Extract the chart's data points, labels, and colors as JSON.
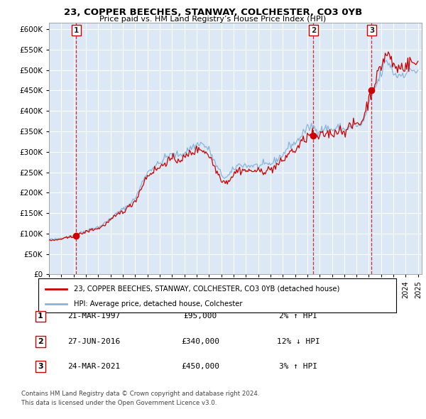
{
  "title": "23, COPPER BEECHES, STANWAY, COLCHESTER, CO3 0YB",
  "subtitle": "Price paid vs. HM Land Registry’s House Price Index (HPI)",
  "ylabel_ticks": [
    "£0",
    "£50K",
    "£100K",
    "£150K",
    "£200K",
    "£250K",
    "£300K",
    "£350K",
    "£400K",
    "£450K",
    "£500K",
    "£550K",
    "£600K"
  ],
  "ytick_values": [
    0,
    50000,
    100000,
    150000,
    200000,
    250000,
    300000,
    350000,
    400000,
    450000,
    500000,
    550000,
    600000
  ],
  "ylim": [
    0,
    615000
  ],
  "xlim_start": 1995.0,
  "xlim_end": 2025.3,
  "background_color": "#ffffff",
  "plot_bg_color": "#dce8f5",
  "grid_color": "#ffffff",
  "sale_color": "#cc0000",
  "hpi_color": "#89b4d9",
  "sale_label": "23, COPPER BEECHES, STANWAY, COLCHESTER, CO3 0YB (detached house)",
  "hpi_label": "HPI: Average price, detached house, Colchester",
  "sales": [
    {
      "num": 1,
      "date": "21-MAR-1997",
      "price": 95000,
      "year": 1997.22,
      "pct": "2%",
      "dir": "↑"
    },
    {
      "num": 2,
      "date": "27-JUN-2016",
      "price": 340000,
      "year": 2016.49,
      "pct": "12%",
      "dir": "↓"
    },
    {
      "num": 3,
      "date": "24-MAR-2021",
      "price": 450000,
      "year": 2021.23,
      "pct": "3%",
      "dir": "↑"
    }
  ],
  "footer1": "Contains HM Land Registry data © Crown copyright and database right 2024.",
  "footer2": "This data is licensed under the Open Government Licence v3.0.",
  "hpi_base_data": [
    [
      1995.0,
      87000
    ],
    [
      1995.08,
      86500
    ],
    [
      1995.17,
      86000
    ],
    [
      1995.25,
      85500
    ],
    [
      1995.33,
      85000
    ],
    [
      1995.42,
      85500
    ],
    [
      1995.5,
      86000
    ],
    [
      1995.58,
      86500
    ],
    [
      1995.67,
      87000
    ],
    [
      1995.75,
      87500
    ],
    [
      1995.83,
      88000
    ],
    [
      1995.92,
      88500
    ],
    [
      1996.0,
      89000
    ],
    [
      1996.08,
      89500
    ],
    [
      1996.17,
      90000
    ],
    [
      1996.25,
      90500
    ],
    [
      1996.33,
      91000
    ],
    [
      1996.42,
      91500
    ],
    [
      1996.5,
      92000
    ],
    [
      1996.58,
      92500
    ],
    [
      1996.67,
      93000
    ],
    [
      1996.75,
      93500
    ],
    [
      1996.83,
      94000
    ],
    [
      1996.92,
      94500
    ],
    [
      1997.0,
      95000
    ],
    [
      1997.08,
      96000
    ],
    [
      1997.17,
      97000
    ],
    [
      1997.25,
      98000
    ],
    [
      1997.33,
      99000
    ],
    [
      1997.42,
      100000
    ],
    [
      1997.5,
      101000
    ],
    [
      1997.58,
      102000
    ],
    [
      1997.67,
      103000
    ],
    [
      1997.75,
      104000
    ],
    [
      1997.83,
      105000
    ],
    [
      1997.92,
      106000
    ],
    [
      1998.0,
      107000
    ],
    [
      1998.08,
      108000
    ],
    [
      1998.17,
      109000
    ],
    [
      1998.25,
      110000
    ],
    [
      1998.33,
      111000
    ],
    [
      1998.42,
      112000
    ],
    [
      1998.5,
      113000
    ],
    [
      1998.58,
      113500
    ],
    [
      1998.67,
      114000
    ],
    [
      1998.75,
      114500
    ],
    [
      1998.83,
      115000
    ],
    [
      1998.92,
      115500
    ],
    [
      1999.0,
      116000
    ],
    [
      1999.08,
      117000
    ],
    [
      1999.17,
      118500
    ],
    [
      1999.25,
      120000
    ],
    [
      1999.33,
      121500
    ],
    [
      1999.42,
      123000
    ],
    [
      1999.5,
      125000
    ],
    [
      1999.58,
      127000
    ],
    [
      1999.67,
      129000
    ],
    [
      1999.75,
      131000
    ],
    [
      1999.83,
      133000
    ],
    [
      1999.92,
      135000
    ],
    [
      2000.0,
      137000
    ],
    [
      2000.08,
      139000
    ],
    [
      2000.17,
      141000
    ],
    [
      2000.25,
      143000
    ],
    [
      2000.33,
      145000
    ],
    [
      2000.42,
      147000
    ],
    [
      2000.5,
      149000
    ],
    [
      2000.58,
      151000
    ],
    [
      2000.67,
      153000
    ],
    [
      2000.75,
      155000
    ],
    [
      2000.83,
      157000
    ],
    [
      2000.92,
      158000
    ],
    [
      2001.0,
      159000
    ],
    [
      2001.08,
      161000
    ],
    [
      2001.17,
      163000
    ],
    [
      2001.25,
      165000
    ],
    [
      2001.33,
      167000
    ],
    [
      2001.42,
      169000
    ],
    [
      2001.5,
      171000
    ],
    [
      2001.58,
      173000
    ],
    [
      2001.67,
      175500
    ],
    [
      2001.75,
      178000
    ],
    [
      2001.83,
      181000
    ],
    [
      2001.92,
      184000
    ],
    [
      2002.0,
      187000
    ],
    [
      2002.08,
      191000
    ],
    [
      2002.17,
      196000
    ],
    [
      2002.25,
      201000
    ],
    [
      2002.33,
      207000
    ],
    [
      2002.42,
      213000
    ],
    [
      2002.5,
      219000
    ],
    [
      2002.58,
      225000
    ],
    [
      2002.67,
      231000
    ],
    [
      2002.75,
      237000
    ],
    [
      2002.83,
      242000
    ],
    [
      2002.92,
      246000
    ],
    [
      2003.0,
      249000
    ],
    [
      2003.08,
      252000
    ],
    [
      2003.17,
      255000
    ],
    [
      2003.25,
      257000
    ],
    [
      2003.33,
      259000
    ],
    [
      2003.42,
      261000
    ],
    [
      2003.5,
      263000
    ],
    [
      2003.58,
      265000
    ],
    [
      2003.67,
      267000
    ],
    [
      2003.75,
      268000
    ],
    [
      2003.83,
      269000
    ],
    [
      2003.92,
      270000
    ],
    [
      2004.0,
      271000
    ],
    [
      2004.08,
      273000
    ],
    [
      2004.17,
      276000
    ],
    [
      2004.25,
      279000
    ],
    [
      2004.33,
      282000
    ],
    [
      2004.42,
      285000
    ],
    [
      2004.5,
      287000
    ],
    [
      2004.58,
      288000
    ],
    [
      2004.67,
      289000
    ],
    [
      2004.75,
      290000
    ],
    [
      2004.83,
      291000
    ],
    [
      2004.92,
      292000
    ],
    [
      2005.0,
      292000
    ],
    [
      2005.08,
      291500
    ],
    [
      2005.17,
      291000
    ],
    [
      2005.25,
      291500
    ],
    [
      2005.33,
      292000
    ],
    [
      2005.42,
      292500
    ],
    [
      2005.5,
      293000
    ],
    [
      2005.58,
      293500
    ],
    [
      2005.67,
      294000
    ],
    [
      2005.75,
      294500
    ],
    [
      2005.83,
      295000
    ],
    [
      2005.92,
      295500
    ],
    [
      2006.0,
      296000
    ],
    [
      2006.08,
      298000
    ],
    [
      2006.17,
      300000
    ],
    [
      2006.25,
      303000
    ],
    [
      2006.33,
      306000
    ],
    [
      2006.42,
      308000
    ],
    [
      2006.5,
      310000
    ],
    [
      2006.58,
      311000
    ],
    [
      2006.67,
      312000
    ],
    [
      2006.75,
      313000
    ],
    [
      2006.83,
      314000
    ],
    [
      2006.92,
      315000
    ],
    [
      2007.0,
      317000
    ],
    [
      2007.08,
      319000
    ],
    [
      2007.17,
      321000
    ],
    [
      2007.25,
      322000
    ],
    [
      2007.33,
      321000
    ],
    [
      2007.42,
      320000
    ],
    [
      2007.5,
      318000
    ],
    [
      2007.58,
      316000
    ],
    [
      2007.67,
      314000
    ],
    [
      2007.75,
      312000
    ],
    [
      2007.83,
      310000
    ],
    [
      2007.92,
      308000
    ],
    [
      2008.0,
      305000
    ],
    [
      2008.08,
      301000
    ],
    [
      2008.17,
      296000
    ],
    [
      2008.25,
      290000
    ],
    [
      2008.33,
      284000
    ],
    [
      2008.42,
      278000
    ],
    [
      2008.5,
      272000
    ],
    [
      2008.58,
      267000
    ],
    [
      2008.67,
      262000
    ],
    [
      2008.75,
      258000
    ],
    [
      2008.83,
      254000
    ],
    [
      2008.92,
      250000
    ],
    [
      2009.0,
      246000
    ],
    [
      2009.08,
      243000
    ],
    [
      2009.17,
      240000
    ],
    [
      2009.25,
      238000
    ],
    [
      2009.33,
      237000
    ],
    [
      2009.42,
      237500
    ],
    [
      2009.5,
      239000
    ],
    [
      2009.58,
      241000
    ],
    [
      2009.67,
      244000
    ],
    [
      2009.75,
      247000
    ],
    [
      2009.83,
      250000
    ],
    [
      2009.92,
      253000
    ],
    [
      2010.0,
      256000
    ],
    [
      2010.08,
      259000
    ],
    [
      2010.17,
      262000
    ],
    [
      2010.25,
      265000
    ],
    [
      2010.33,
      267000
    ],
    [
      2010.42,
      268000
    ],
    [
      2010.5,
      268000
    ],
    [
      2010.58,
      268000
    ],
    [
      2010.67,
      268000
    ],
    [
      2010.75,
      268000
    ],
    [
      2010.83,
      268000
    ],
    [
      2010.92,
      268000
    ],
    [
      2011.0,
      267000
    ],
    [
      2011.08,
      266000
    ],
    [
      2011.17,
      265000
    ],
    [
      2011.25,
      265000
    ],
    [
      2011.33,
      265500
    ],
    [
      2011.42,
      266000
    ],
    [
      2011.5,
      266500
    ],
    [
      2011.58,
      267000
    ],
    [
      2011.67,
      267000
    ],
    [
      2011.75,
      266500
    ],
    [
      2011.83,
      266000
    ],
    [
      2011.92,
      265500
    ],
    [
      2012.0,
      265000
    ],
    [
      2012.08,
      265000
    ],
    [
      2012.17,
      265500
    ],
    [
      2012.25,
      266000
    ],
    [
      2012.33,
      266500
    ],
    [
      2012.42,
      267000
    ],
    [
      2012.5,
      267500
    ],
    [
      2012.58,
      268000
    ],
    [
      2012.67,
      268500
    ],
    [
      2012.75,
      269000
    ],
    [
      2012.83,
      269500
    ],
    [
      2012.92,
      270000
    ],
    [
      2013.0,
      270500
    ],
    [
      2013.08,
      271500
    ],
    [
      2013.17,
      273000
    ],
    [
      2013.25,
      275000
    ],
    [
      2013.33,
      277000
    ],
    [
      2013.42,
      279000
    ],
    [
      2013.5,
      281000
    ],
    [
      2013.58,
      283000
    ],
    [
      2013.67,
      285000
    ],
    [
      2013.75,
      287000
    ],
    [
      2013.83,
      289000
    ],
    [
      2013.92,
      291000
    ],
    [
      2014.0,
      293000
    ],
    [
      2014.08,
      296000
    ],
    [
      2014.17,
      299000
    ],
    [
      2014.25,
      303000
    ],
    [
      2014.33,
      307000
    ],
    [
      2014.42,
      311000
    ],
    [
      2014.5,
      314000
    ],
    [
      2014.58,
      316000
    ],
    [
      2014.67,
      317000
    ],
    [
      2014.75,
      318000
    ],
    [
      2014.83,
      319000
    ],
    [
      2014.92,
      320000
    ],
    [
      2015.0,
      321000
    ],
    [
      2015.08,
      323000
    ],
    [
      2015.17,
      326000
    ],
    [
      2015.25,
      329000
    ],
    [
      2015.33,
      333000
    ],
    [
      2015.42,
      337000
    ],
    [
      2015.5,
      340000
    ],
    [
      2015.58,
      343000
    ],
    [
      2015.67,
      346000
    ],
    [
      2015.75,
      349000
    ],
    [
      2015.83,
      352000
    ],
    [
      2015.92,
      354000
    ],
    [
      2016.0,
      356000
    ],
    [
      2016.08,
      358000
    ],
    [
      2016.17,
      360000
    ],
    [
      2016.25,
      362000
    ],
    [
      2016.33,
      363000
    ],
    [
      2016.42,
      362000
    ],
    [
      2016.5,
      360000
    ],
    [
      2016.58,
      358000
    ],
    [
      2016.67,
      356000
    ],
    [
      2016.75,
      355000
    ],
    [
      2016.83,
      354000
    ],
    [
      2016.92,
      353000
    ],
    [
      2017.0,
      352000
    ],
    [
      2017.08,
      353000
    ],
    [
      2017.17,
      354000
    ],
    [
      2017.25,
      355000
    ],
    [
      2017.33,
      356000
    ],
    [
      2017.42,
      357000
    ],
    [
      2017.5,
      358000
    ],
    [
      2017.58,
      358000
    ],
    [
      2017.67,
      357000
    ],
    [
      2017.75,
      356000
    ],
    [
      2017.83,
      355000
    ],
    [
      2017.92,
      354000
    ],
    [
      2018.0,
      353000
    ],
    [
      2018.08,
      354000
    ],
    [
      2018.17,
      355000
    ],
    [
      2018.25,
      356000
    ],
    [
      2018.33,
      357000
    ],
    [
      2018.42,
      358000
    ],
    [
      2018.5,
      359000
    ],
    [
      2018.58,
      359000
    ],
    [
      2018.67,
      358000
    ],
    [
      2018.75,
      357000
    ],
    [
      2018.83,
      356000
    ],
    [
      2018.92,
      355000
    ],
    [
      2019.0,
      354000
    ],
    [
      2019.08,
      355000
    ],
    [
      2019.17,
      356000
    ],
    [
      2019.25,
      357000
    ],
    [
      2019.33,
      358000
    ],
    [
      2019.42,
      359000
    ],
    [
      2019.5,
      360000
    ],
    [
      2019.58,
      361000
    ],
    [
      2019.67,
      362000
    ],
    [
      2019.75,
      363000
    ],
    [
      2019.83,
      364000
    ],
    [
      2019.92,
      365000
    ],
    [
      2020.0,
      366000
    ],
    [
      2020.08,
      365000
    ],
    [
      2020.17,
      364000
    ],
    [
      2020.25,
      363000
    ],
    [
      2020.33,
      364000
    ],
    [
      2020.42,
      367000
    ],
    [
      2020.5,
      372000
    ],
    [
      2020.58,
      378000
    ],
    [
      2020.67,
      385000
    ],
    [
      2020.75,
      392000
    ],
    [
      2020.83,
      400000
    ],
    [
      2020.92,
      408000
    ],
    [
      2021.0,
      415000
    ],
    [
      2021.08,
      422000
    ],
    [
      2021.17,
      429000
    ],
    [
      2021.25,
      436000
    ],
    [
      2021.33,
      443000
    ],
    [
      2021.42,
      449000
    ],
    [
      2021.5,
      455000
    ],
    [
      2021.58,
      461000
    ],
    [
      2021.67,
      467000
    ],
    [
      2021.75,
      473000
    ],
    [
      2021.83,
      479000
    ],
    [
      2021.92,
      485000
    ],
    [
      2022.0,
      491000
    ],
    [
      2022.08,
      498000
    ],
    [
      2022.17,
      505000
    ],
    [
      2022.25,
      511000
    ],
    [
      2022.33,
      516000
    ],
    [
      2022.42,
      519000
    ],
    [
      2022.5,
      520000
    ],
    [
      2022.58,
      519000
    ],
    [
      2022.67,
      516000
    ],
    [
      2022.75,
      511000
    ],
    [
      2022.83,
      505000
    ],
    [
      2022.92,
      499000
    ],
    [
      2023.0,
      494000
    ],
    [
      2023.08,
      491000
    ],
    [
      2023.17,
      489000
    ],
    [
      2023.25,
      488000
    ],
    [
      2023.33,
      487000
    ],
    [
      2023.42,
      487000
    ],
    [
      2023.5,
      488000
    ],
    [
      2023.58,
      489000
    ],
    [
      2023.67,
      490000
    ],
    [
      2023.75,
      491000
    ],
    [
      2023.83,
      492000
    ],
    [
      2023.92,
      493000
    ],
    [
      2024.0,
      494000
    ],
    [
      2024.08,
      495000
    ],
    [
      2024.17,
      496000
    ],
    [
      2024.25,
      497000
    ],
    [
      2024.33,
      498000
    ],
    [
      2024.5,
      499000
    ],
    [
      2024.67,
      500000
    ],
    [
      2024.83,
      500000
    ],
    [
      2025.0,
      500000
    ]
  ]
}
